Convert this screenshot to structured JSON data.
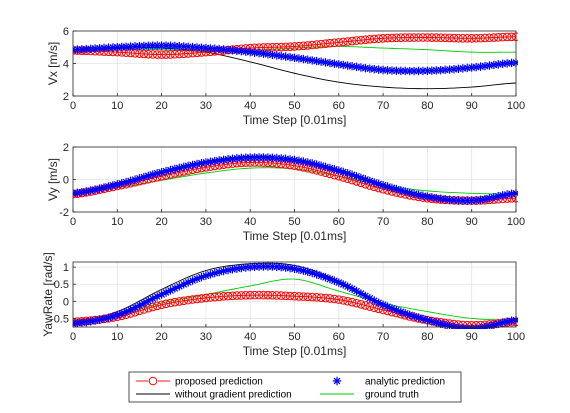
{
  "chart_data": [
    {
      "type": "line",
      "xlabel": "Time Step [0.01ms]",
      "ylabel": "Vx [m/s]",
      "xlim": [
        0,
        100
      ],
      "ylim": [
        2,
        6
      ],
      "xticks": [
        0,
        10,
        20,
        30,
        40,
        50,
        60,
        70,
        80,
        90,
        100
      ],
      "yticks": [
        2,
        4,
        6
      ],
      "grid": true,
      "x": [
        0,
        10,
        20,
        30,
        40,
        50,
        60,
        70,
        80,
        90,
        100
      ],
      "series": [
        {
          "name": "proposed prediction",
          "color": "#ff0000",
          "marker": "circle",
          "values": [
            4.8,
            4.7,
            4.55,
            4.7,
            4.95,
            5.05,
            5.3,
            5.55,
            5.6,
            5.55,
            5.65
          ]
        },
        {
          "name": "analytic prediction",
          "color": "#0000ff",
          "marker": "star",
          "values": [
            4.85,
            5.0,
            5.1,
            4.95,
            4.7,
            4.35,
            3.95,
            3.6,
            3.55,
            3.75,
            4.05
          ]
        },
        {
          "name": "without gradient prediction",
          "color": "#000000",
          "marker": "none",
          "values": [
            4.8,
            4.95,
            4.95,
            4.7,
            4.1,
            3.4,
            2.85,
            2.55,
            2.45,
            2.55,
            2.8
          ]
        },
        {
          "name": "ground truth",
          "color": "#00cc00",
          "marker": "none",
          "values": [
            4.85,
            4.9,
            4.85,
            4.75,
            4.8,
            4.95,
            5.05,
            4.95,
            4.85,
            4.7,
            4.7
          ]
        }
      ]
    },
    {
      "type": "line",
      "xlabel": "Time Step [0.01ms]",
      "ylabel": "Vy [m/s]",
      "xlim": [
        0,
        100
      ],
      "ylim": [
        -2,
        2
      ],
      "xticks": [
        0,
        10,
        20,
        30,
        40,
        50,
        60,
        70,
        80,
        90,
        100
      ],
      "yticks": [
        -2,
        0,
        2
      ],
      "grid": true,
      "x": [
        0,
        10,
        20,
        30,
        40,
        50,
        60,
        70,
        80,
        90,
        100
      ],
      "series": [
        {
          "name": "proposed prediction",
          "color": "#ff0000",
          "marker": "circle",
          "values": [
            -0.9,
            -0.4,
            0.2,
            0.75,
            1.05,
            0.85,
            0.2,
            -0.6,
            -1.15,
            -1.3,
            -1.15
          ]
        },
        {
          "name": "analytic prediction",
          "color": "#0000ff",
          "marker": "star",
          "values": [
            -0.85,
            -0.3,
            0.45,
            1.05,
            1.35,
            1.2,
            0.55,
            -0.35,
            -1.05,
            -1.3,
            -0.85
          ]
        },
        {
          "name": "without gradient prediction",
          "color": "#000000",
          "marker": "none",
          "values": [
            -0.8,
            -0.25,
            0.45,
            1.1,
            1.4,
            1.2,
            0.5,
            -0.45,
            -1.15,
            -1.3,
            -0.8
          ]
        },
        {
          "name": "ground truth",
          "color": "#00cc00",
          "marker": "none",
          "values": [
            -0.9,
            -0.5,
            -0.05,
            0.4,
            0.7,
            0.65,
            0.2,
            -0.35,
            -0.7,
            -0.85,
            -0.9
          ]
        }
      ]
    },
    {
      "type": "line",
      "xlabel": "Time Step [0.01ms]",
      "ylabel": "YawRate [rad/s]",
      "xlim": [
        0,
        100
      ],
      "ylim": [
        -0.75,
        1.15
      ],
      "xticks": [
        0,
        10,
        20,
        30,
        40,
        50,
        60,
        70,
        80,
        90,
        100
      ],
      "yticks": [
        -0.5,
        0,
        0.5,
        1
      ],
      "grid": true,
      "x": [
        0,
        10,
        20,
        30,
        40,
        50,
        60,
        70,
        80,
        90,
        100
      ],
      "series": [
        {
          "name": "proposed prediction",
          "color": "#ff0000",
          "marker": "circle",
          "values": [
            -0.6,
            -0.45,
            -0.1,
            0.1,
            0.18,
            0.15,
            0.05,
            -0.25,
            -0.55,
            -0.7,
            -0.6
          ]
        },
        {
          "name": "analytic prediction",
          "color": "#0000ff",
          "marker": "star",
          "values": [
            -0.65,
            -0.4,
            0.2,
            0.75,
            1.0,
            0.95,
            0.55,
            -0.1,
            -0.55,
            -0.8,
            -0.55
          ]
        },
        {
          "name": "without gradient prediction",
          "color": "#000000",
          "marker": "none",
          "values": [
            -0.6,
            -0.3,
            0.35,
            0.9,
            1.1,
            1.05,
            0.6,
            -0.1,
            -0.55,
            -0.75,
            -0.55
          ]
        },
        {
          "name": "ground truth",
          "color": "#00cc00",
          "marker": "none",
          "values": [
            -0.55,
            -0.4,
            -0.05,
            0.2,
            0.45,
            0.65,
            0.3,
            -0.05,
            -0.3,
            -0.5,
            -0.55
          ]
        }
      ]
    }
  ],
  "legend": {
    "placement": "bottom",
    "entries": [
      {
        "label": "proposed prediction",
        "color": "#ff0000",
        "marker": "circle",
        "line": "dash"
      },
      {
        "label": "analytic prediction",
        "color": "#0000ff",
        "marker": "star",
        "line": "none"
      },
      {
        "label": "without gradient prediction",
        "color": "#000000",
        "marker": "none",
        "line": "solid"
      },
      {
        "label": "ground truth",
        "color": "#00cc00",
        "marker": "none",
        "line": "solid"
      }
    ]
  }
}
